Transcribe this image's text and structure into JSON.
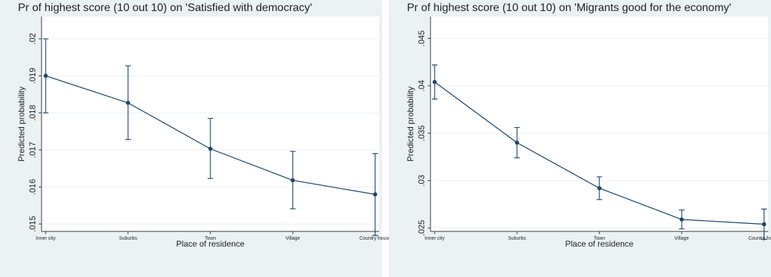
{
  "chart_data": [
    {
      "type": "line",
      "title": "Pr of highest score (10 out 10) on 'Satisfied with democracy'",
      "x_label": "Place of residence",
      "y_label": "Predicted probability",
      "categories": [
        "Inner city",
        "Suburbs",
        "Town",
        "Village",
        "Country house"
      ],
      "series": [
        {
          "color": "#1a476f",
          "values": [
            0.019,
            0.01827,
            0.01703,
            0.01618,
            0.0158
          ],
          "lower": [
            0.018,
            0.01728,
            0.01623,
            0.01541,
            0.01469
          ],
          "upper": [
            0.02,
            0.01927,
            0.01785,
            0.01696,
            0.0169
          ]
        }
      ],
      "ylim": [
        0.0148,
        0.0206
      ],
      "yticks": [
        {
          "value": 0.015,
          "label": ".015"
        },
        {
          "value": 0.016,
          "label": ".016"
        },
        {
          "value": 0.017,
          "label": ".017"
        },
        {
          "value": 0.018,
          "label": ".018"
        },
        {
          "value": 0.019,
          "label": ".019"
        },
        {
          "value": 0.02,
          "label": ".02"
        }
      ],
      "grid": true
    },
    {
      "type": "line",
      "title": "Pr of highest score (10 out 10) on 'Migrants good for the economy'",
      "x_label": "Place of residence",
      "y_label": "Predicted probability",
      "categories": [
        "Inner city",
        "Suburbs",
        "Town",
        "Village",
        "Country house"
      ],
      "series": [
        {
          "color": "#1a476f",
          "values": [
            0.0404,
            0.034,
            0.0292,
            0.0259,
            0.0254
          ],
          "lower": [
            0.0386,
            0.0324,
            0.028,
            0.0249,
            0.0238
          ],
          "upper": [
            0.0422,
            0.0356,
            0.0304,
            0.0269,
            0.027
          ]
        }
      ],
      "ylim": [
        0.02464,
        0.0473
      ],
      "yticks": [
        {
          "value": 0.025,
          "label": ".025"
        },
        {
          "value": 0.03,
          "label": ".03"
        },
        {
          "value": 0.035,
          "label": ".035"
        },
        {
          "value": 0.04,
          "label": ".04"
        },
        {
          "value": 0.045,
          "label": ".045"
        }
      ],
      "grid": true
    }
  ]
}
